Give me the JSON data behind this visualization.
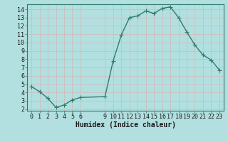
{
  "x": [
    0,
    1,
    2,
    3,
    4,
    5,
    6,
    9,
    10,
    11,
    12,
    13,
    14,
    15,
    16,
    17,
    18,
    19,
    20,
    21,
    22,
    23
  ],
  "y": [
    4.7,
    4.1,
    3.3,
    2.2,
    2.5,
    3.1,
    3.4,
    3.5,
    7.8,
    10.9,
    13.0,
    13.2,
    13.8,
    13.5,
    14.1,
    14.3,
    13.0,
    11.3,
    9.7,
    8.5,
    7.9,
    6.7
  ],
  "line_color": "#2e7d6e",
  "bg_color": "#b2dfdf",
  "grid_color": "#c8e8e8",
  "xlabel": "Humidex (Indice chaleur)",
  "xlim": [
    -0.5,
    23.5
  ],
  "ylim": [
    1.8,
    14.6
  ],
  "xticks": [
    0,
    1,
    2,
    3,
    4,
    5,
    6,
    9,
    10,
    11,
    12,
    13,
    14,
    15,
    16,
    17,
    18,
    19,
    20,
    21,
    22,
    23
  ],
  "yticks": [
    2,
    3,
    4,
    5,
    6,
    7,
    8,
    9,
    10,
    11,
    12,
    13,
    14
  ],
  "xlabel_fontsize": 7,
  "tick_fontsize": 6,
  "marker_size": 2.5,
  "linewidth": 1.0
}
